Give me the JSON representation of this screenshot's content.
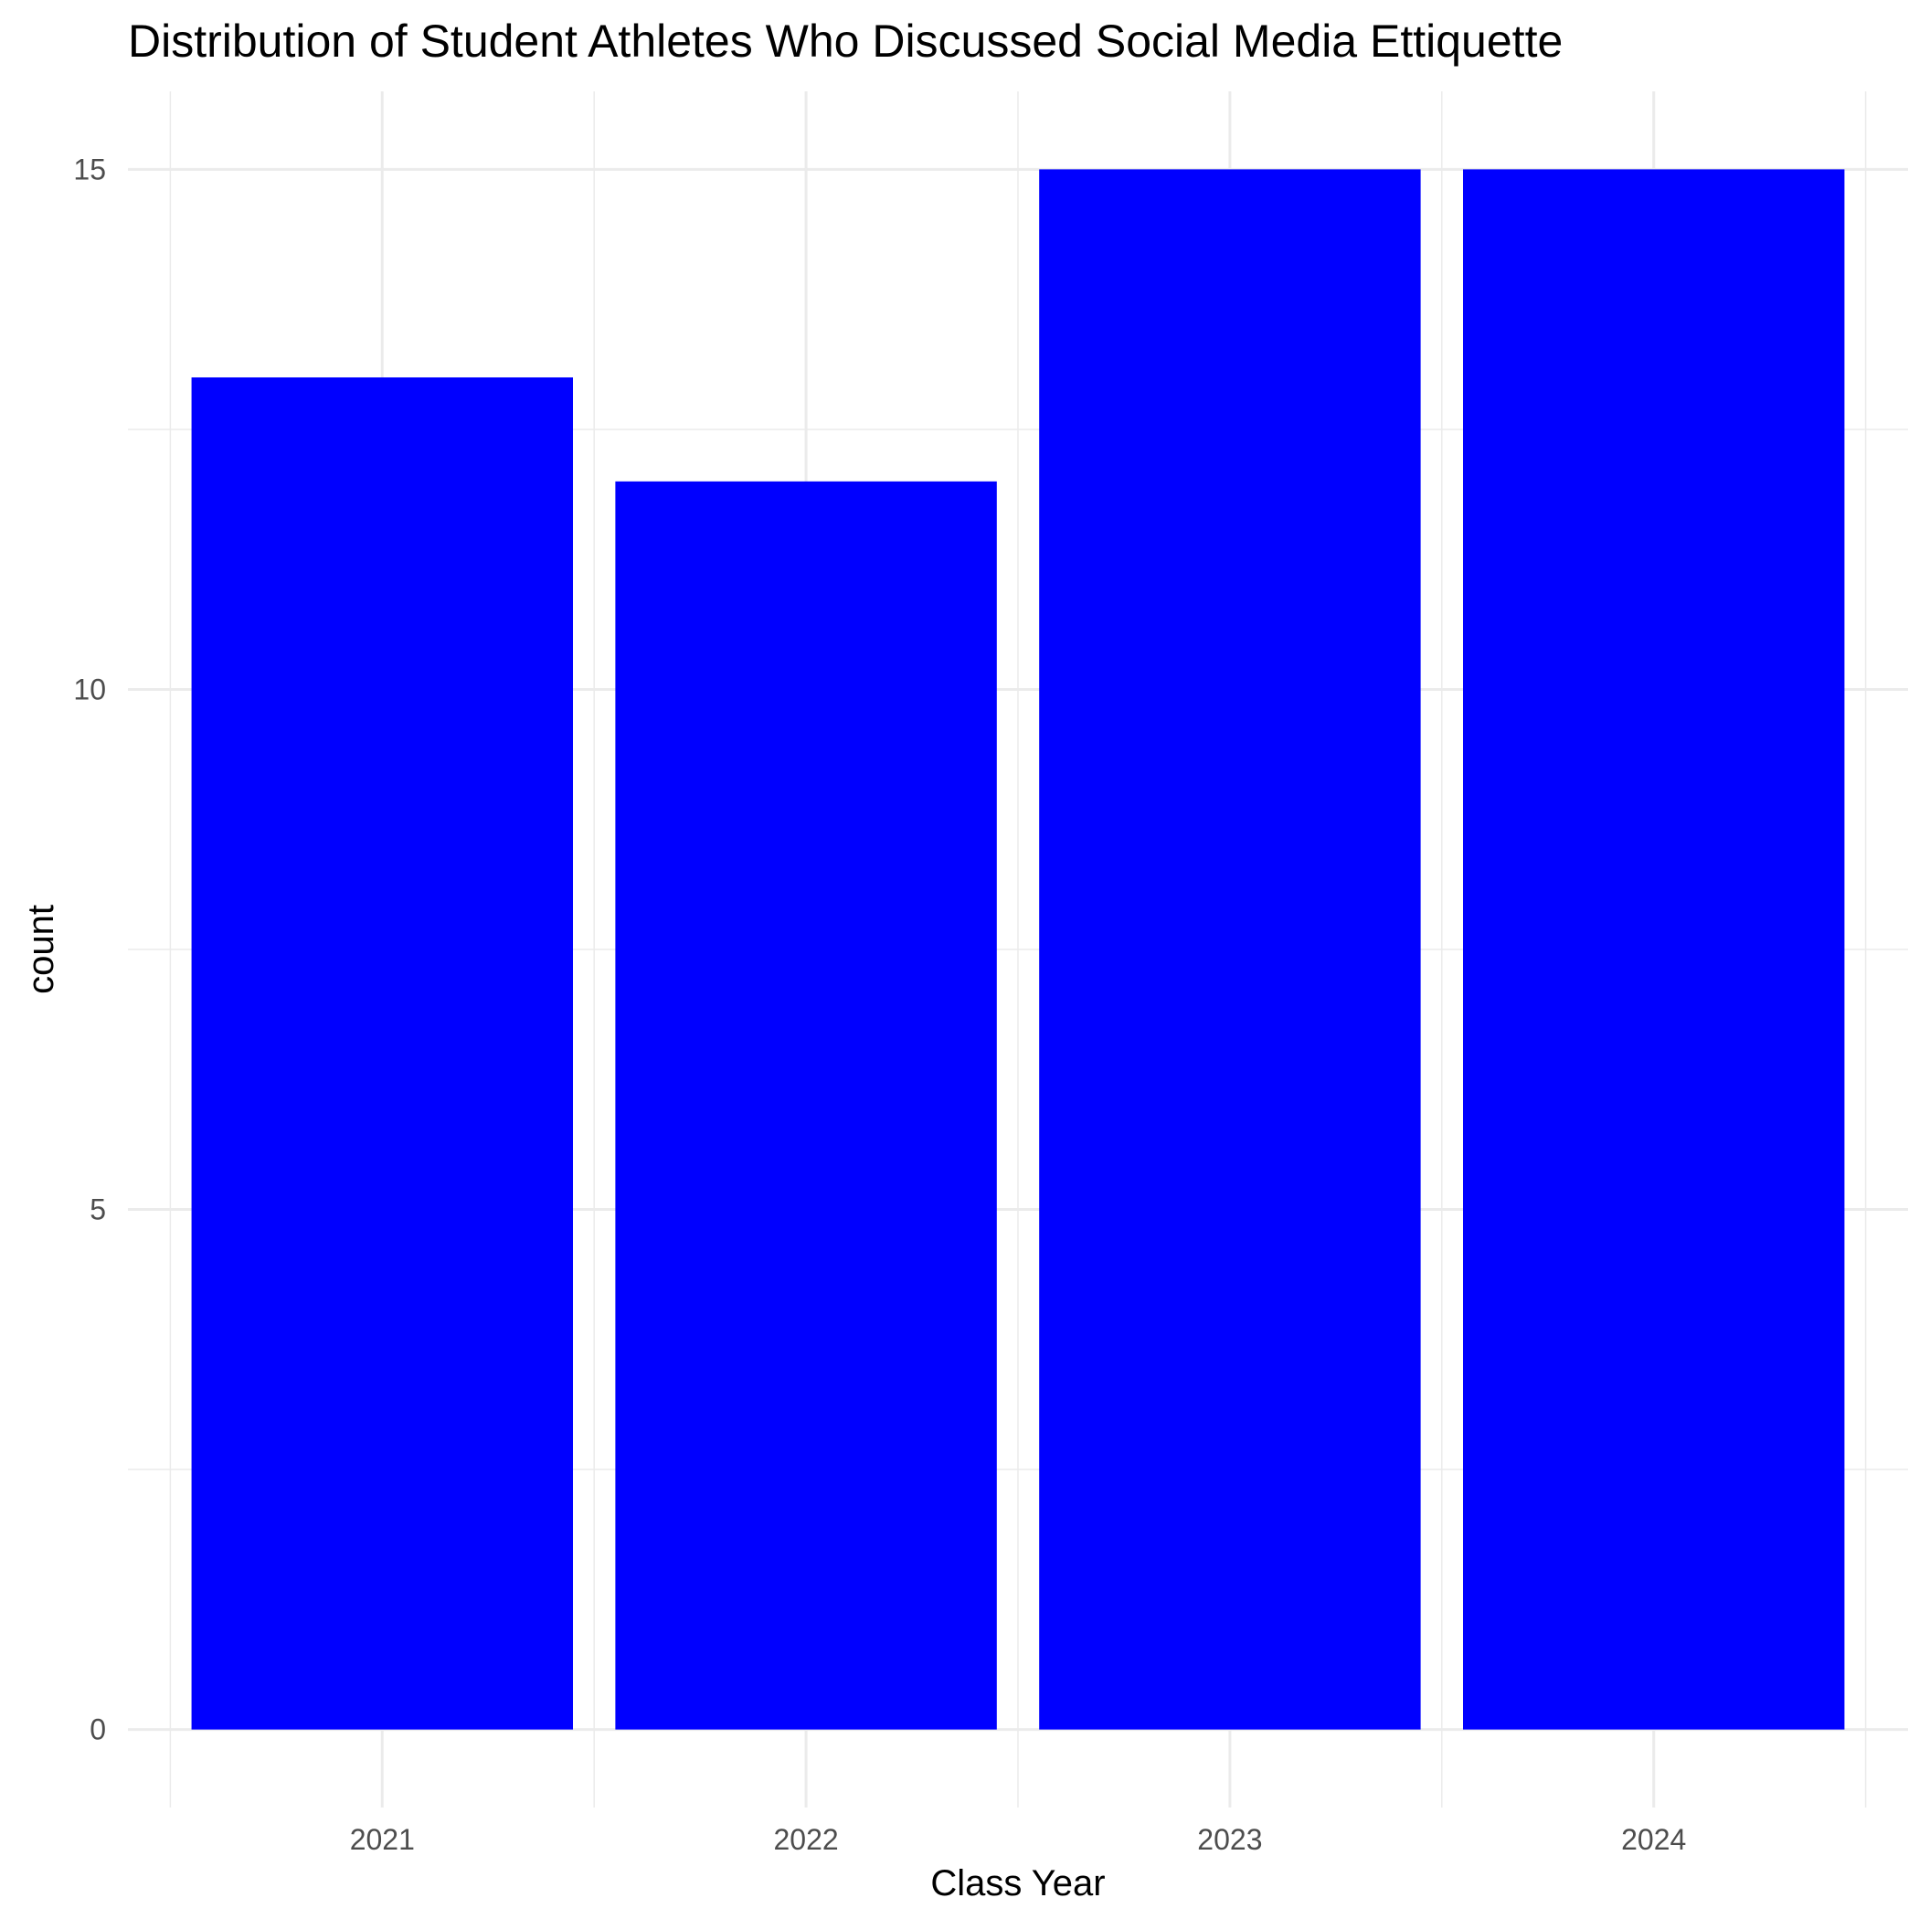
{
  "chart_data": {
    "type": "bar",
    "title": "Distribution of Student Athletes Who Discussed Social Media Ettiquette",
    "xlabel": "Class Year",
    "ylabel": "count",
    "categories": [
      "2021",
      "2022",
      "2023",
      "2024"
    ],
    "values": [
      13,
      12,
      15,
      15
    ],
    "ylim": [
      -0.75,
      15.75
    ],
    "yticks": [
      0,
      5,
      10,
      15
    ],
    "ytick_labels": [
      "0",
      "5",
      "10",
      "15"
    ],
    "bar_color": "#0000ff",
    "grid": true,
    "grid_color": "#ebebeb",
    "legend": "none"
  }
}
